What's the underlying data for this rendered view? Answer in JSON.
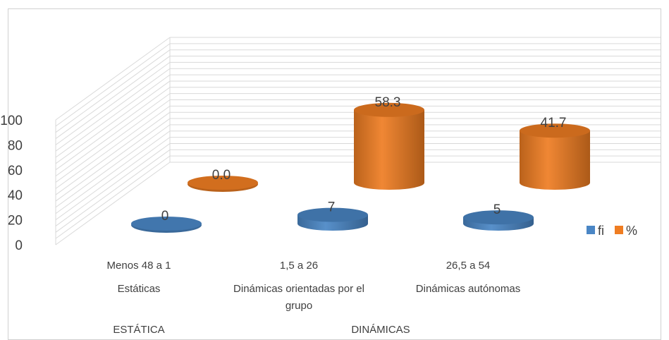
{
  "chart_data": {
    "type": "bar",
    "style": "3d-cylinder",
    "series": [
      {
        "name": "fi",
        "color": "#4a86c5",
        "values": [
          0,
          7,
          5
        ],
        "labels": [
          "0",
          "7",
          "5"
        ]
      },
      {
        "name": "%",
        "color": "#ef7d22",
        "values": [
          0.0,
          58.3,
          41.7
        ],
        "labels": [
          "0.0",
          "58.3",
          "41.7"
        ]
      }
    ],
    "category_levels": [
      [
        "Menos 48 a 1",
        "1,5 a 26",
        "26,5 a 54"
      ],
      [
        "Estáticas",
        "Dinámicas orientadas por el grupo",
        "Dinámicas autónomas"
      ],
      [
        "ESTÁTICA",
        "DINÁMICAS"
      ]
    ],
    "yticks": [
      "0",
      "20",
      "40",
      "60",
      "80",
      "100"
    ],
    "ylim": [
      0,
      100
    ],
    "grid": true,
    "legend_position": "right"
  }
}
